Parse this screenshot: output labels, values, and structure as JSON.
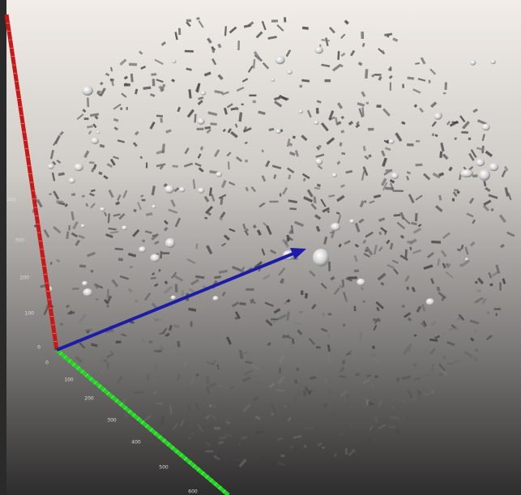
{
  "axes": {
    "vertical": {
      "ticks": [
        "0",
        "100",
        "200",
        "300",
        "400"
      ]
    },
    "depth": {
      "ticks": [
        "0",
        "100",
        "200",
        "300",
        "400",
        "500",
        "600"
      ]
    }
  }
}
